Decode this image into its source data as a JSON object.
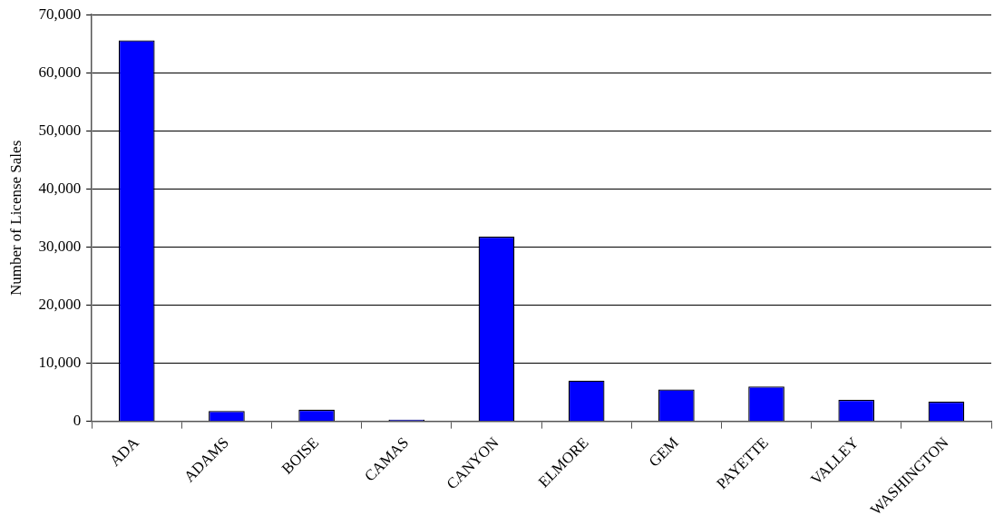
{
  "chart_data": {
    "type": "bar",
    "ylabel": "Number of License Sales",
    "categories": [
      "ADA",
      "ADAMS",
      "BOISE",
      "CAMAS",
      "CANYON",
      "ELMORE",
      "GEM",
      "PAYETTE",
      "VALLEY",
      "WASHINGTON"
    ],
    "values": [
      65600,
      1800,
      2000,
      300,
      31800,
      7000,
      5500,
      6000,
      3700,
      3400
    ],
    "color": "#0000ff",
    "ylim": [
      0,
      70000
    ],
    "yticks": [
      {
        "value": 0,
        "label": "0"
      },
      {
        "value": 10000,
        "label": "10,000"
      },
      {
        "value": 20000,
        "label": "20,000"
      },
      {
        "value": 30000,
        "label": "30,000"
      },
      {
        "value": 40000,
        "label": "40,000"
      },
      {
        "value": 50000,
        "label": "50,000"
      },
      {
        "value": 60000,
        "label": "60,000"
      },
      {
        "value": 70000,
        "label": "70,000"
      }
    ],
    "grid": "y",
    "legend": false
  }
}
